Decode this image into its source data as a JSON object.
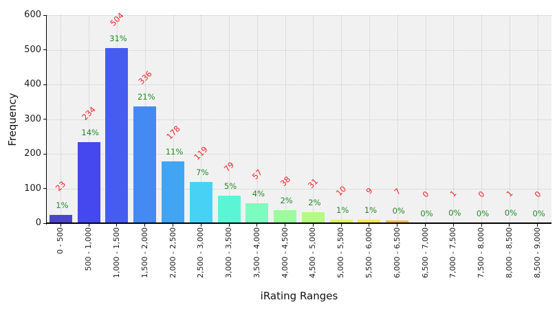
{
  "chart_data": {
    "type": "bar",
    "title": "",
    "xlabel": "iRating Ranges",
    "ylabel": "Frequency",
    "categories": [
      "0 - 500",
      "500 - 1,000",
      "1,000 - 1,500",
      "1,500 - 2,000",
      "2,000 - 2,500",
      "2,500 - 3,000",
      "3,000 - 3,500",
      "3,500 - 4,000",
      "4,000 - 4,500",
      "4,500 - 5,000",
      "5,000 - 5,500",
      "5,500 - 6,000",
      "6,000 - 6,500",
      "6,500 - 7,000",
      "7,000 - 7,500",
      "7,500 - 8,000",
      "8,000 - 8,500",
      "8,500 - 9,000"
    ],
    "values": [
      23,
      234,
      504,
      336,
      178,
      119,
      79,
      57,
      38,
      31,
      10,
      9,
      7,
      0,
      1,
      0,
      1,
      0
    ],
    "percent_labels": [
      "1%",
      "14%",
      "31%",
      "21%",
      "11%",
      "7%",
      "5%",
      "4%",
      "2%",
      "2%",
      "1%",
      "1%",
      "0%",
      "0%",
      "0%",
      "0%",
      "0%",
      "0%"
    ],
    "bar_colors": [
      "#4a44c9",
      "#4448ee",
      "#465cf0",
      "#4589f2",
      "#41a5f4",
      "#47d2f5",
      "#5bf5d6",
      "#7dfcbf",
      "#9afc9d",
      "#b5fa82",
      "#dff55e",
      "#f6e84d",
      "#f7bd45",
      "#f8a03c",
      "#f97f33",
      "#fa5c2a",
      "#fb3a21",
      "#fc1818"
    ],
    "ylim": [
      0,
      600
    ],
    "yticks": [
      0,
      100,
      200,
      300,
      400,
      500,
      600
    ],
    "grid": "dotted",
    "legend": "none",
    "plot_background": "#f1f1f2",
    "value_label_color": "#ee2222",
    "percent_label_color": "#1f8b1f",
    "axis_color": "#000000"
  }
}
